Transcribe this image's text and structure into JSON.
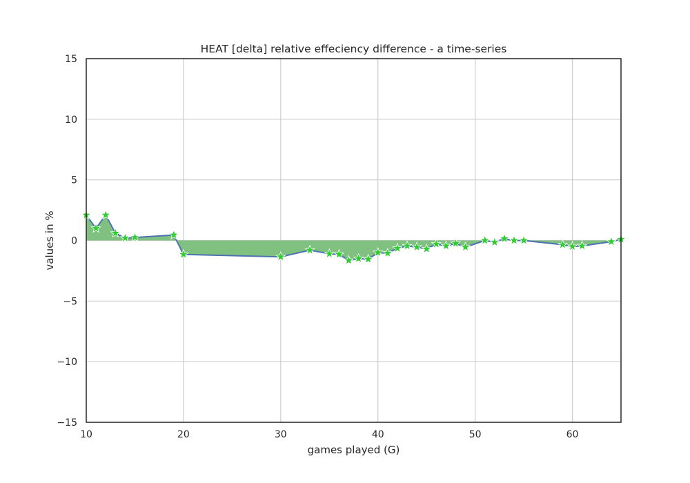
{
  "chart_data": {
    "type": "line",
    "title": "HEAT [delta] relative effeciency difference - a time-series",
    "xlabel": "games played (G)",
    "ylabel": "values in %",
    "xlim": [
      10,
      65
    ],
    "ylim": [
      -15,
      15
    ],
    "xticks": [
      10,
      20,
      30,
      40,
      50,
      60
    ],
    "yticks": [
      15,
      10,
      5,
      0,
      -5,
      -10,
      -15
    ],
    "ytick_labels": [
      "15",
      "10",
      "5",
      "0",
      "−5",
      "−10",
      "−15"
    ],
    "grid": true,
    "legend": "none",
    "series": [
      {
        "marker": "star",
        "x": [
          10,
          11,
          12,
          13,
          14,
          15,
          19,
          20,
          30,
          33,
          35,
          36,
          37,
          38,
          39,
          40,
          41,
          42,
          43,
          44,
          45,
          46,
          47,
          48,
          49,
          51,
          52,
          53,
          54,
          55,
          59,
          60,
          61,
          64,
          65
        ],
        "y": [
          2.1,
          1.0,
          2.1,
          0.6,
          0.2,
          0.25,
          0.45,
          -1.15,
          -1.35,
          -0.8,
          -1.1,
          -1.15,
          -1.65,
          -1.5,
          -1.55,
          -1.0,
          -1.05,
          -0.65,
          -0.45,
          -0.55,
          -0.7,
          -0.3,
          -0.45,
          -0.25,
          -0.55,
          0.0,
          -0.15,
          0.15,
          0.0,
          0.0,
          -0.35,
          -0.5,
          -0.45,
          -0.1,
          0.1
        ]
      }
    ],
    "colors": {
      "line": "#4c72b0",
      "fill": "#80c080",
      "marker": "#32cd32",
      "marker_edge": "#ffffff",
      "grid": "#cccccc",
      "frame": "#262626"
    }
  }
}
